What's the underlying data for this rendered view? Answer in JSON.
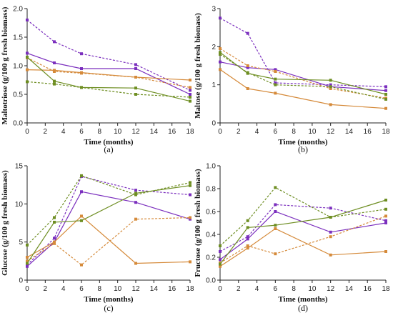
{
  "chart_data": [
    {
      "type": "line",
      "panel_label": "(a)",
      "xlabel": "Time (months)",
      "ylabel": "Maltotriose (g/100 g fresh biomass)",
      "xlim": [
        0,
        18
      ],
      "ylim": [
        0,
        2.0
      ],
      "xticks": [
        "0",
        "2",
        "4",
        "6",
        "8",
        "10",
        "12",
        "14",
        "16",
        "18"
      ],
      "yticks": [
        "0.0",
        "0.5",
        "1.0",
        "1.5",
        "2.0"
      ],
      "x": [
        0,
        3,
        6,
        12,
        18
      ],
      "series": [
        {
          "color": "#7b2fbe",
          "dashed": true,
          "values": [
            1.8,
            1.42,
            1.21,
            1.02,
            0.57
          ]
        },
        {
          "color": "#7b2fbe",
          "dashed": false,
          "values": [
            1.22,
            1.05,
            0.95,
            0.95,
            0.5
          ]
        },
        {
          "color": "#d58a3a",
          "dashed": true,
          "values": [
            1.14,
            0.9,
            0.87,
            0.8,
            0.62
          ]
        },
        {
          "color": "#d58a3a",
          "dashed": false,
          "values": [
            0.93,
            0.92,
            0.88,
            0.8,
            0.75
          ]
        },
        {
          "color": "#6e8e22",
          "dashed": false,
          "values": [
            1.15,
            0.73,
            0.62,
            0.61,
            0.38
          ]
        },
        {
          "color": "#6e8e22",
          "dashed": true,
          "values": [
            0.72,
            0.68,
            0.62,
            0.5,
            0.45
          ]
        }
      ]
    },
    {
      "type": "line",
      "panel_label": "(b)",
      "xlabel": "Time (months)",
      "ylabel": "Maltose (g/100 g fresh biomass)",
      "xlim": [
        0,
        18
      ],
      "ylim": [
        0,
        3
      ],
      "xticks": [
        "0",
        "2",
        "4",
        "6",
        "8",
        "10",
        "12",
        "14",
        "16",
        "18"
      ],
      "yticks": [
        "0",
        "1",
        "2",
        "3"
      ],
      "x": [
        0,
        3,
        6,
        12,
        18
      ],
      "series": [
        {
          "color": "#7b2fbe",
          "dashed": true,
          "values": [
            2.75,
            2.35,
            1.05,
            1.0,
            0.95
          ]
        },
        {
          "color": "#7b2fbe",
          "dashed": false,
          "values": [
            1.6,
            1.45,
            1.4,
            0.95,
            0.85
          ]
        },
        {
          "color": "#d58a3a",
          "dashed": true,
          "values": [
            1.95,
            1.5,
            1.35,
            0.9,
            0.65
          ]
        },
        {
          "color": "#d58a3a",
          "dashed": false,
          "values": [
            1.4,
            0.9,
            0.78,
            0.48,
            0.38
          ]
        },
        {
          "color": "#6e8e22",
          "dashed": false,
          "values": [
            1.85,
            1.3,
            1.15,
            1.12,
            0.75
          ]
        },
        {
          "color": "#6e8e22",
          "dashed": true,
          "values": [
            1.8,
            1.32,
            1.0,
            0.95,
            0.62
          ]
        }
      ]
    },
    {
      "type": "line",
      "panel_label": "(c)",
      "xlabel": "Time (months)",
      "ylabel": "Glucose (g/100 g fresh biomass)",
      "xlim": [
        0,
        18
      ],
      "ylim": [
        0,
        15
      ],
      "xticks": [
        "0",
        "2",
        "4",
        "6",
        "8",
        "10",
        "12",
        "14",
        "16",
        "18"
      ],
      "yticks": [
        "0",
        "5",
        "10",
        "15"
      ],
      "x": [
        0,
        3,
        6,
        12,
        18
      ],
      "series": [
        {
          "color": "#7b2fbe",
          "dashed": true,
          "values": [
            2.0,
            5.5,
            13.6,
            11.8,
            11.2
          ]
        },
        {
          "color": "#7b2fbe",
          "dashed": false,
          "values": [
            1.8,
            5.0,
            11.6,
            10.2,
            8.0
          ]
        },
        {
          "color": "#d58a3a",
          "dashed": true,
          "values": [
            2.5,
            4.8,
            2.0,
            8.0,
            8.2
          ]
        },
        {
          "color": "#d58a3a",
          "dashed": false,
          "values": [
            3.0,
            5.0,
            8.4,
            2.2,
            2.4
          ]
        },
        {
          "color": "#6e8e22",
          "dashed": false,
          "values": [
            2.2,
            7.6,
            7.8,
            11.4,
            12.4
          ]
        },
        {
          "color": "#6e8e22",
          "dashed": true,
          "values": [
            4.6,
            8.2,
            13.7,
            11.2,
            12.8
          ]
        }
      ]
    },
    {
      "type": "line",
      "panel_label": "(d)",
      "xlabel": "Time (months)",
      "ylabel": "Fructose (g/100 g fresh biomass)",
      "xlim": [
        0,
        18
      ],
      "ylim": [
        0,
        1.0
      ],
      "xticks": [
        "0",
        "2",
        "4",
        "6",
        "8",
        "10",
        "12",
        "14",
        "16",
        "18"
      ],
      "yticks": [
        "0.0",
        "0.2",
        "0.4",
        "0.6",
        "0.8",
        "1.0"
      ],
      "x": [
        0,
        3,
        6,
        12,
        18
      ],
      "series": [
        {
          "color": "#7b2fbe",
          "dashed": true,
          "values": [
            0.25,
            0.38,
            0.66,
            0.63,
            0.52
          ]
        },
        {
          "color": "#7b2fbe",
          "dashed": false,
          "values": [
            0.18,
            0.36,
            0.6,
            0.42,
            0.5
          ]
        },
        {
          "color": "#d58a3a",
          "dashed": true,
          "values": [
            0.15,
            0.3,
            0.23,
            0.38,
            0.56
          ]
        },
        {
          "color": "#d58a3a",
          "dashed": false,
          "values": [
            0.12,
            0.28,
            0.45,
            0.22,
            0.25
          ]
        },
        {
          "color": "#6e8e22",
          "dashed": false,
          "values": [
            0.14,
            0.46,
            0.48,
            0.55,
            0.7
          ]
        },
        {
          "color": "#6e8e22",
          "dashed": true,
          "values": [
            0.3,
            0.52,
            0.81,
            0.55,
            0.62
          ]
        }
      ]
    }
  ]
}
